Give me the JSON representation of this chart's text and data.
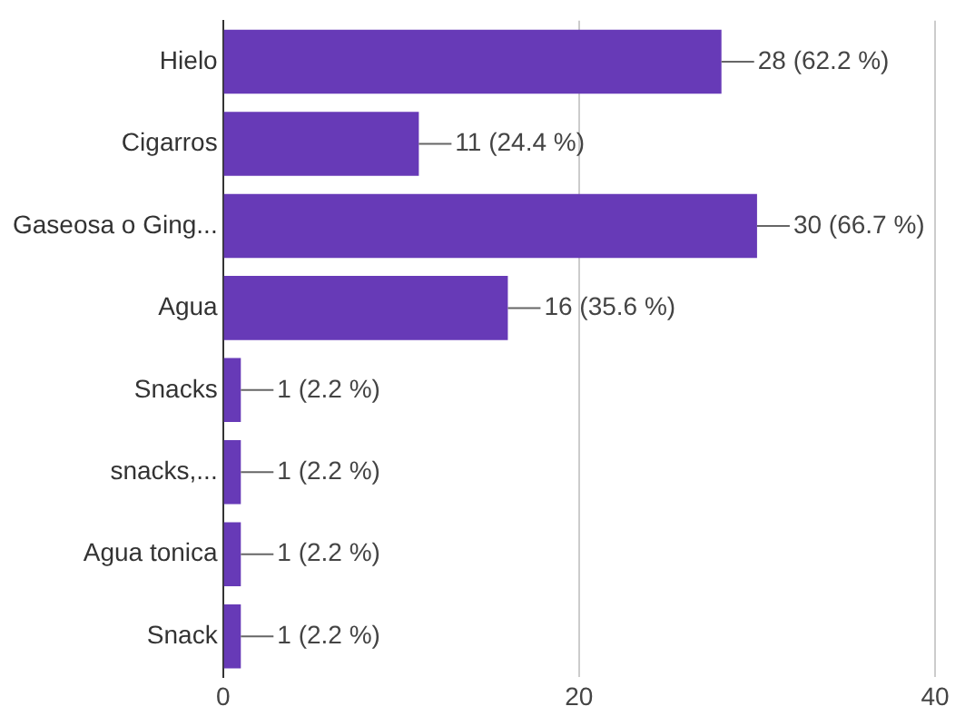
{
  "chart_data": {
    "type": "bar",
    "orientation": "horizontal",
    "categories": [
      "Hielo",
      "Cigarros",
      "Gaseosa o Ging...",
      "Agua",
      "Snacks",
      "snacks,...",
      "Agua tonica",
      "Snack"
    ],
    "values": [
      28,
      11,
      30,
      16,
      1,
      1,
      1,
      1
    ],
    "value_labels": [
      "28 (62.2 %)",
      "11 (24.4 %)",
      "30 (66.7 %)",
      "16 (35.6 %)",
      "1 (2.2 %)",
      "1 (2.2 %)",
      "1 (2.2 %)",
      "1 (2.2 %)"
    ],
    "color": "#673ab7",
    "xlim": [
      0,
      40
    ],
    "xticks": [
      0,
      20,
      40
    ],
    "grid": "x"
  }
}
